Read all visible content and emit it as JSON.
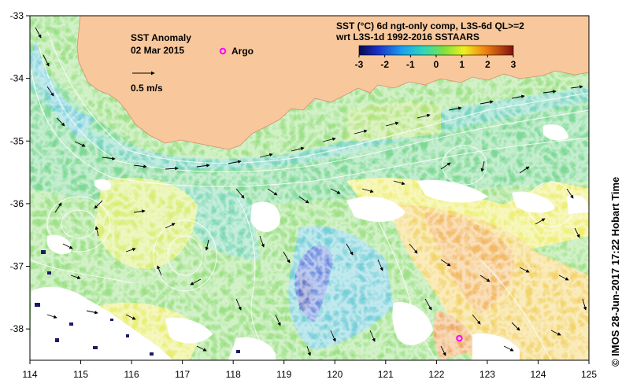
{
  "title": "SST Anomaly",
  "date": "02 Mar 2015",
  "legend": {
    "argo_label": "Argo",
    "scale_label": "0.5 m/s",
    "product_line1": "SST (°C) 6d ngt-only comp, L3S-6d QL>=2",
    "product_line2": "wrt L3S-1d 1992-2016 SSTAARS",
    "colorbar_ticks": [
      "-3",
      "-2",
      "-1",
      "0",
      "1",
      "2",
      "3"
    ],
    "colorbar_range": [
      -3,
      3
    ]
  },
  "credit": "©  IMOS 28-Jun-2017 17:22 Hobart Time",
  "axes": {
    "lon_range": [
      114,
      125
    ],
    "lat_range": [
      -38.5,
      -33
    ],
    "x_ticks": [
      "114",
      "115",
      "116",
      "117",
      "118",
      "119",
      "120",
      "121",
      "122",
      "123",
      "124",
      "125"
    ],
    "y_ticks": [
      "-33",
      "-34",
      "-35",
      "-36",
      "-37",
      "-38"
    ]
  },
  "colors": {
    "land": "#f8c89c",
    "cloud": "#ffffff",
    "argo": "#ff00ff"
  },
  "argo_floats": [
    {
      "lon": 122.45,
      "lat": -38.15
    }
  ]
}
